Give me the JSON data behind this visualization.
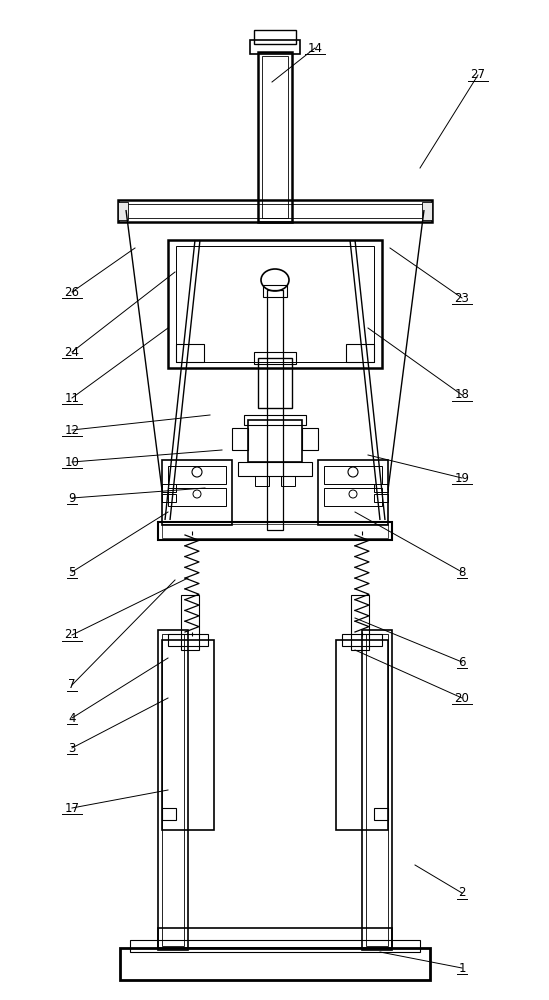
{
  "bg": "#ffffff",
  "lc": "#000000",
  "annotations": [
    [
      1,
      462,
      968,
      380,
      952
    ],
    [
      2,
      462,
      893,
      415,
      865
    ],
    [
      3,
      72,
      748,
      168,
      698
    ],
    [
      4,
      72,
      718,
      168,
      658
    ],
    [
      5,
      72,
      572,
      168,
      512
    ],
    [
      6,
      462,
      662,
      355,
      618
    ],
    [
      7,
      72,
      685,
      175,
      580
    ],
    [
      8,
      462,
      572,
      355,
      512
    ],
    [
      9,
      72,
      498,
      205,
      488
    ],
    [
      10,
      72,
      462,
      222,
      450
    ],
    [
      11,
      72,
      398,
      168,
      328
    ],
    [
      12,
      72,
      430,
      210,
      415
    ],
    [
      14,
      315,
      48,
      272,
      82
    ],
    [
      17,
      72,
      808,
      168,
      790
    ],
    [
      18,
      462,
      395,
      368,
      328
    ],
    [
      19,
      462,
      478,
      368,
      455
    ],
    [
      20,
      462,
      698,
      355,
      650
    ],
    [
      21,
      72,
      635,
      188,
      578
    ],
    [
      23,
      462,
      298,
      390,
      248
    ],
    [
      24,
      72,
      352,
      175,
      272
    ],
    [
      26,
      72,
      292,
      135,
      248
    ],
    [
      27,
      478,
      75,
      420,
      168
    ]
  ]
}
